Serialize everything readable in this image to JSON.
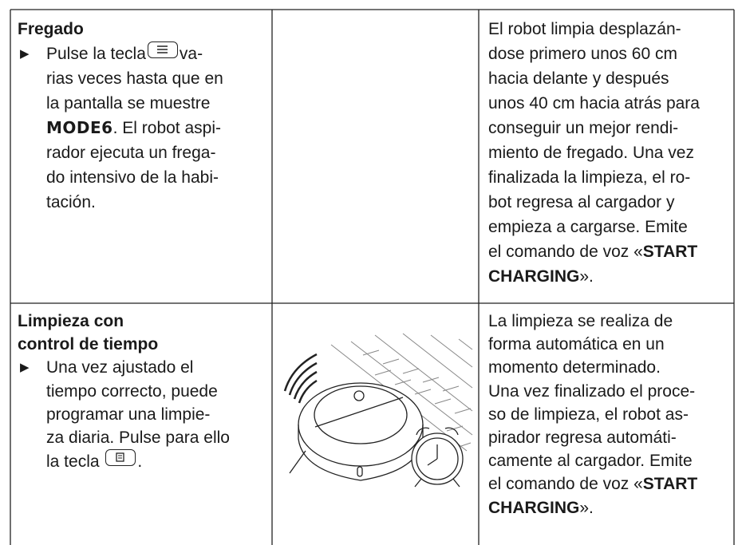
{
  "rows": [
    {
      "heading": [
        "Fregado"
      ],
      "steps": [
        [
          "Pulse la tecla",
          "va-"
        ],
        [
          "rias veces hasta que en"
        ],
        [
          "la pantalla se muestre"
        ],
        [
          "MODE6",
          ". El robot aspi-"
        ],
        [
          "rador ejecuta un frega-"
        ],
        [
          "do intensivo de la habi-"
        ],
        [
          "tación."
        ]
      ],
      "description": [
        [
          "El robot limpia desplazán-"
        ],
        [
          "dose primero unos 60 cm"
        ],
        [
          "hacia delante y después"
        ],
        [
          "unos 40 cm hacia atrás para"
        ],
        [
          "conseguir un mejor rendi-"
        ],
        [
          "miento de fregado. Una vez"
        ],
        [
          "finalizada la limpieza, el ro-"
        ],
        [
          "bot regresa al cargador y"
        ],
        [
          "empieza a cargarse. Emite"
        ],
        [
          "el comando de voz «",
          "START"
        ],
        [
          "CHARGING",
          "»."
        ]
      ]
    },
    {
      "heading": [
        "Limpieza con",
        "control de tiempo"
      ],
      "steps": [
        [
          "Una vez ajustado el"
        ],
        [
          "tiempo correcto, puede"
        ],
        [
          "programar una limpie-"
        ],
        [
          "za diaria. Pulse para ello"
        ],
        [
          "la tecla",
          "."
        ]
      ],
      "description": [
        [
          "La limpieza se realiza de"
        ],
        [
          "forma automática en un"
        ],
        [
          "momento determinado."
        ],
        [
          "Una vez finalizado el proce-"
        ],
        [
          "so de limpieza, el robot as-"
        ],
        [
          "pirador regresa automáti-"
        ],
        [
          "camente al cargador. Emite"
        ],
        [
          "el comando de voz «",
          "START"
        ],
        [
          "CHARGING",
          "»."
        ]
      ]
    }
  ]
}
